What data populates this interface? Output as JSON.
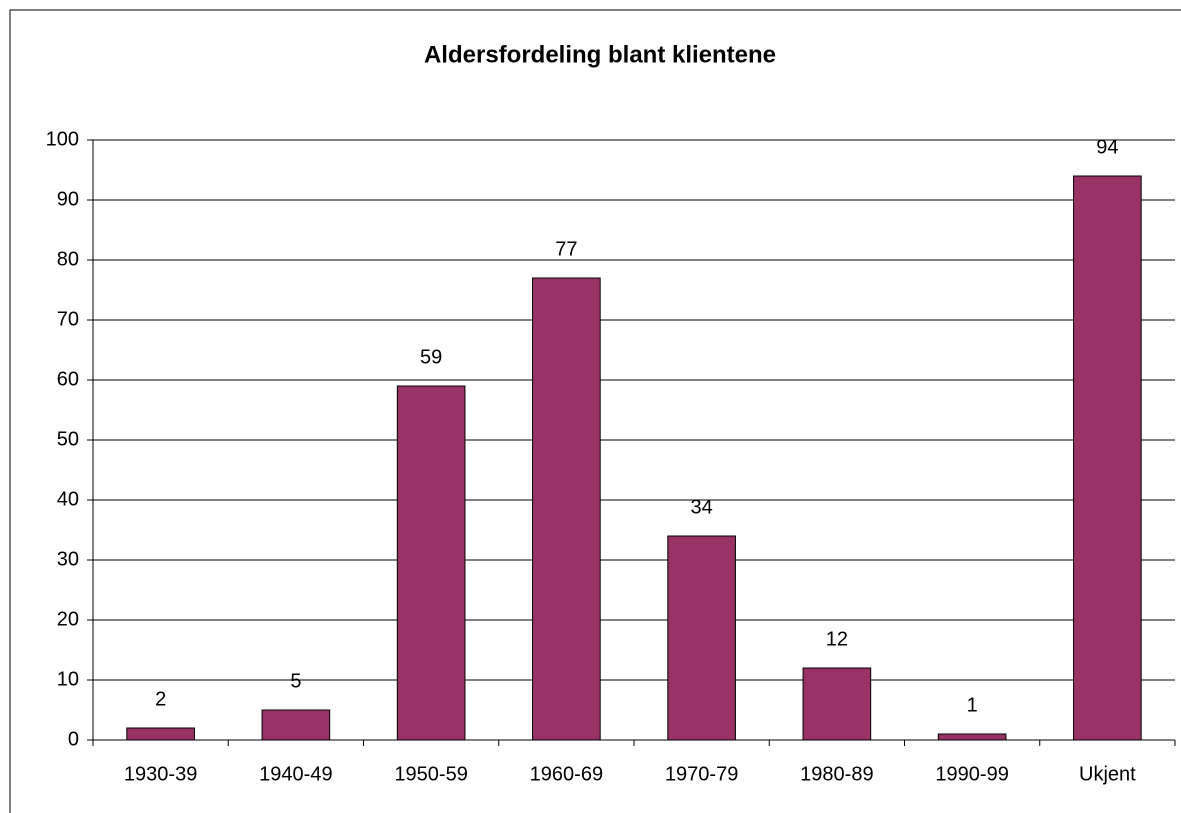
{
  "chart_data": {
    "type": "bar",
    "title": "Aldersfordeling blant klientene",
    "categories": [
      "1930-39",
      "1940-49",
      "1950-59",
      "1960-69",
      "1970-79",
      "1980-89",
      "1990-99",
      "Ukjent"
    ],
    "values": [
      2,
      5,
      59,
      77,
      34,
      12,
      1,
      94
    ],
    "color": "#993366",
    "ylim": [
      0,
      100
    ],
    "yticks": [
      0,
      10,
      20,
      30,
      40,
      50,
      60,
      70,
      80,
      90,
      100
    ],
    "grid": true
  }
}
